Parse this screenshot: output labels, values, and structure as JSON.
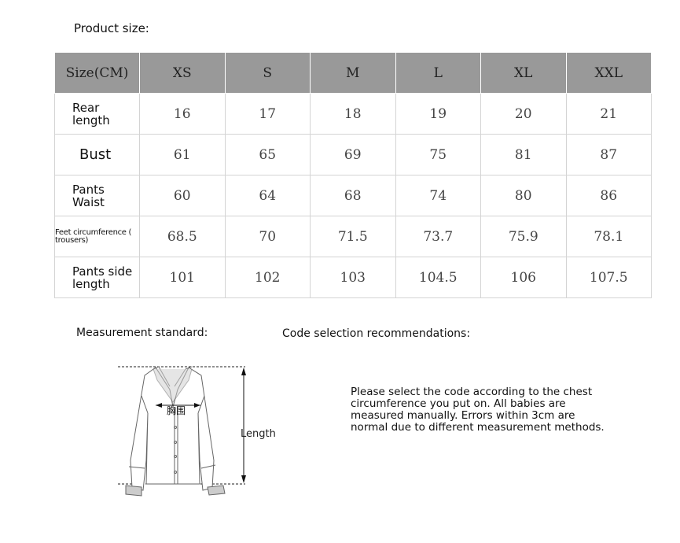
{
  "title": "Product size:",
  "table": {
    "header": [
      "Size(CM)",
      "XS",
      "S",
      "M",
      "L",
      "XL",
      "XXL"
    ],
    "rows": [
      {
        "label": "Rear length",
        "values": [
          "16",
          "17",
          "18",
          "19",
          "20",
          "21"
        ]
      },
      {
        "label": "Bust",
        "values": [
          "61",
          "65",
          "69",
          "75",
          "81",
          "87"
        ]
      },
      {
        "label": "Pants Waist",
        "values": [
          "60",
          "64",
          "68",
          "74",
          "80",
          "86"
        ]
      },
      {
        "label": "Feet circumference ( trousers)",
        "values": [
          "68.5",
          "70",
          "71.5",
          "73.7",
          "75.9",
          "78.1"
        ]
      },
      {
        "label": "Pants side length",
        "values": [
          "101",
          "102",
          "103",
          "104.5",
          "106",
          "107.5"
        ]
      }
    ]
  },
  "measurement_standard": "Measurement standard:",
  "diagram": {
    "chest_label": "胸围",
    "length_label": "Length"
  },
  "code_selection": "Code selection recommendations:",
  "recommendation": "Please select the code according to the chest circumference you put on. All babies are measured manually. Errors within 3cm are normal due to different measurement methods."
}
